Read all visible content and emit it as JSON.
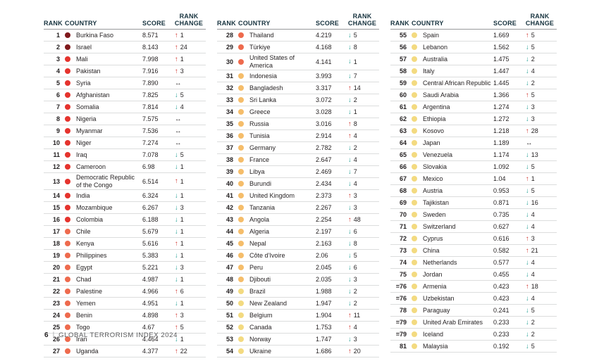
{
  "footer": {
    "page_number": "6",
    "separator": "|",
    "title": "GLOBAL TERRORISM INDEX 2024"
  },
  "headers": {
    "rank": "RANK",
    "country": "COUNTRY",
    "score": "SCORE",
    "rank_change": "RANK CHANGE"
  },
  "legend": {
    "score_bands": [
      {
        "min_score": 8,
        "name": "score-8-10",
        "color": "#7f191c"
      },
      {
        "min_score": 6,
        "name": "score-6-8",
        "color": "#e5332d"
      },
      {
        "min_score": 4,
        "name": "score-4-6",
        "color": "#ee6a4d"
      },
      {
        "min_score": 2,
        "name": "score-2-4",
        "color": "#f5bd6a"
      },
      {
        "min_score": 0,
        "name": "score-0-2",
        "color": "#f3da80"
      }
    ],
    "change_styles": {
      "up": {
        "glyph": "↑",
        "color": "#d2342e"
      },
      "down": {
        "glyph": "↓",
        "color": "#1f9e93"
      },
      "same": {
        "glyph": "↔",
        "color": "#231f20"
      }
    }
  },
  "columns": [
    {
      "rows": [
        {
          "rank": "1",
          "country": "Burkina Faso",
          "score": "8.571",
          "change": 1
        },
        {
          "rank": "2",
          "country": "Israel",
          "score": "8.143",
          "change": 24
        },
        {
          "rank": "3",
          "country": "Mali",
          "score": "7.998",
          "change": 1
        },
        {
          "rank": "4",
          "country": "Pakistan",
          "score": "7.916",
          "change": 3
        },
        {
          "rank": "5",
          "country": "Syria",
          "score": "7.890",
          "change": 0
        },
        {
          "rank": "6",
          "country": "Afghanistan",
          "score": "7.825",
          "change": -5
        },
        {
          "rank": "7",
          "country": "Somalia",
          "score": "7.814",
          "change": -4
        },
        {
          "rank": "8",
          "country": "Nigeria",
          "score": "7.575",
          "change": 0
        },
        {
          "rank": "9",
          "country": "Myanmar",
          "score": "7.536",
          "change": 0
        },
        {
          "rank": "10",
          "country": "Niger",
          "score": "7.274",
          "change": 0
        },
        {
          "rank": "11",
          "country": "Iraq",
          "score": "7.078",
          "change": -5
        },
        {
          "rank": "12",
          "country": "Cameroon",
          "score": "6.98",
          "change": -1
        },
        {
          "rank": "13",
          "country": "Democratic Republic of the Congo",
          "score": "6.514",
          "change": 1
        },
        {
          "rank": "14",
          "country": "India",
          "score": "6.324",
          "change": -1
        },
        {
          "rank": "15",
          "country": "Mozambique",
          "score": "6.267",
          "change": -3
        },
        {
          "rank": "16",
          "country": "Colombia",
          "score": "6.188",
          "change": -1
        },
        {
          "rank": "17",
          "country": "Chile",
          "score": "5.679",
          "change": -1
        },
        {
          "rank": "18",
          "country": "Kenya",
          "score": "5.616",
          "change": 1
        },
        {
          "rank": "19",
          "country": "Philippines",
          "score": "5.383",
          "change": -1
        },
        {
          "rank": "20",
          "country": "Egypt",
          "score": "5.221",
          "change": -3
        },
        {
          "rank": "21",
          "country": "Chad",
          "score": "4.987",
          "change": -1
        },
        {
          "rank": "22",
          "country": "Palestine",
          "score": "4.966",
          "change": 6
        },
        {
          "rank": "23",
          "country": "Yemen",
          "score": "4.951",
          "change": -1
        },
        {
          "rank": "24",
          "country": "Benin",
          "score": "4.898",
          "change": 3
        },
        {
          "rank": "25",
          "country": "Togo",
          "score": "4.67",
          "change": 5
        },
        {
          "rank": "26",
          "country": "Iran",
          "score": "4.464",
          "change": -1
        },
        {
          "rank": "27",
          "country": "Uganda",
          "score": "4.377",
          "change": 22
        }
      ]
    },
    {
      "rows": [
        {
          "rank": "28",
          "country": "Thailand",
          "score": "4.219",
          "change": -5
        },
        {
          "rank": "29",
          "country": "Türkiye",
          "score": "4.168",
          "change": -8
        },
        {
          "rank": "30",
          "country": "United States of America",
          "score": "4.141",
          "change": -1
        },
        {
          "rank": "31",
          "country": "Indonesia",
          "score": "3.993",
          "change": -7
        },
        {
          "rank": "32",
          "country": "Bangladesh",
          "score": "3.317",
          "change": 14
        },
        {
          "rank": "33",
          "country": "Sri Lanka",
          "score": "3.072",
          "change": -2
        },
        {
          "rank": "34",
          "country": "Greece",
          "score": "3.028",
          "change": -1
        },
        {
          "rank": "35",
          "country": "Russia",
          "score": "3.016",
          "change": 8
        },
        {
          "rank": "36",
          "country": "Tunisia",
          "score": "2.914",
          "change": 4
        },
        {
          "rank": "37",
          "country": "Germany",
          "score": "2.782",
          "change": -2
        },
        {
          "rank": "38",
          "country": "France",
          "score": "2.647",
          "change": -4
        },
        {
          "rank": "39",
          "country": "Libya",
          "score": "2.469",
          "change": -7
        },
        {
          "rank": "40",
          "country": "Burundi",
          "score": "2.434",
          "change": -4
        },
        {
          "rank": "41",
          "country": "United Kingdom",
          "score": "2.373",
          "change": 3
        },
        {
          "rank": "42",
          "country": "Tanzania",
          "score": "2.267",
          "change": -3
        },
        {
          "rank": "43",
          "country": "Angola",
          "score": "2.254",
          "change": 48
        },
        {
          "rank": "44",
          "country": "Algeria",
          "score": "2.197",
          "change": -6
        },
        {
          "rank": "45",
          "country": "Nepal",
          "score": "2.163",
          "change": -8
        },
        {
          "rank": "46",
          "country": "Côte d’Ivoire",
          "score": "2.06",
          "change": -5
        },
        {
          "rank": "47",
          "country": "Peru",
          "score": "2.045",
          "change": -6
        },
        {
          "rank": "48",
          "country": "Djibouti",
          "score": "2.035",
          "change": -3
        },
        {
          "rank": "49",
          "country": "Brazil",
          "score": "1.988",
          "change": -2
        },
        {
          "rank": "50",
          "country": "New Zealand",
          "score": "1.947",
          "change": -2
        },
        {
          "rank": "51",
          "country": "Belgium",
          "score": "1.904",
          "change": 11
        },
        {
          "rank": "52",
          "country": "Canada",
          "score": "1.753",
          "change": 4
        },
        {
          "rank": "53",
          "country": "Norway",
          "score": "1.747",
          "change": -3
        },
        {
          "rank": "54",
          "country": "Ukraine",
          "score": "1.686",
          "change": 20
        }
      ]
    },
    {
      "rows": [
        {
          "rank": "55",
          "country": "Spain",
          "score": "1.669",
          "change": 5
        },
        {
          "rank": "56",
          "country": "Lebanon",
          "score": "1.562",
          "change": -5
        },
        {
          "rank": "57",
          "country": "Australia",
          "score": "1.475",
          "change": -2
        },
        {
          "rank": "58",
          "country": "Italy",
          "score": "1.447",
          "change": -4
        },
        {
          "rank": "59",
          "country": "Central African Republic",
          "score": "1.445",
          "change": -2
        },
        {
          "rank": "60",
          "country": "Saudi Arabia",
          "score": "1.366",
          "change": 5
        },
        {
          "rank": "61",
          "country": "Argentina",
          "score": "1.274",
          "change": -3
        },
        {
          "rank": "62",
          "country": "Ethiopia",
          "score": "1.272",
          "change": -3
        },
        {
          "rank": "63",
          "country": "Kosovo",
          "score": "1.218",
          "change": 28
        },
        {
          "rank": "64",
          "country": "Japan",
          "score": "1.189",
          "change": 0
        },
        {
          "rank": "65",
          "country": "Venezuela",
          "score": "1.174",
          "change": -13
        },
        {
          "rank": "66",
          "country": "Slovakia",
          "score": "1.092",
          "change": -5
        },
        {
          "rank": "67",
          "country": "Mexico",
          "score": "1.04",
          "change": 1
        },
        {
          "rank": "68",
          "country": "Austria",
          "score": "0.953",
          "change": -5
        },
        {
          "rank": "69",
          "country": "Tajikistan",
          "score": "0.871",
          "change": -16
        },
        {
          "rank": "70",
          "country": "Sweden",
          "score": "0.735",
          "change": -4
        },
        {
          "rank": "71",
          "country": "Switzerland",
          "score": "0.627",
          "change": -4
        },
        {
          "rank": "72",
          "country": "Cyprus",
          "score": "0.616",
          "change": 3
        },
        {
          "rank": "73",
          "country": "China",
          "score": "0.582",
          "change": 21
        },
        {
          "rank": "74",
          "country": "Netherlands",
          "score": "0.577",
          "change": -4
        },
        {
          "rank": "75",
          "country": "Jordan",
          "score": "0.455",
          "change": -4
        },
        {
          "rank": "=76",
          "country": "Armenia",
          "score": "0.423",
          "change": 18
        },
        {
          "rank": "=76",
          "country": "Uzbekistan",
          "score": "0.423",
          "change": -4
        },
        {
          "rank": "78",
          "country": "Paraguay",
          "score": "0.241",
          "change": -5
        },
        {
          "rank": "=79",
          "country": "United Arab Emirates",
          "score": "0.233",
          "change": -2
        },
        {
          "rank": "=79",
          "country": "Iceland",
          "score": "0.233",
          "change": -2
        },
        {
          "rank": "81",
          "country": "Malaysia",
          "score": "0.192",
          "change": -5
        }
      ]
    }
  ]
}
